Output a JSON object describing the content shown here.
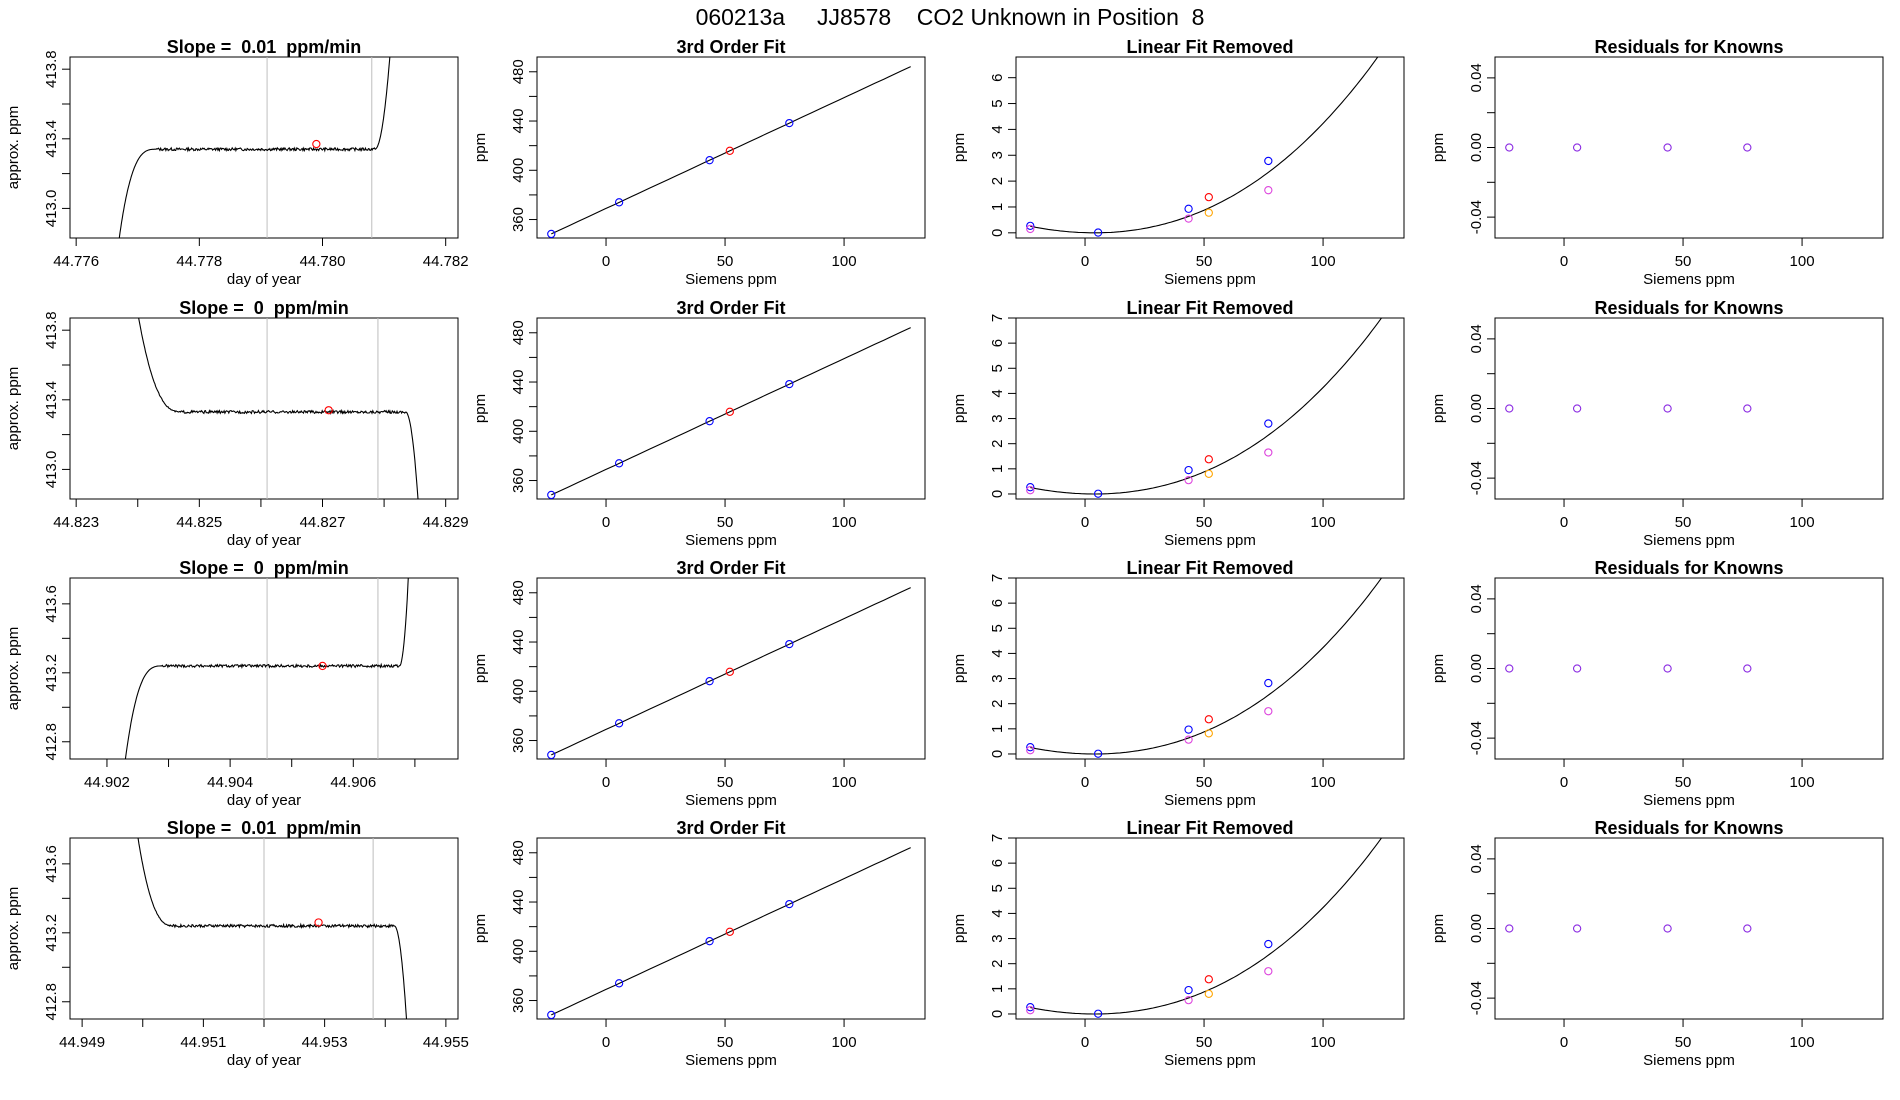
{
  "page": {
    "title": "060213a     JJ8578    CO2 Unknown in Position  8"
  },
  "colors": {
    "line": "#000000",
    "grid": "#bebebe",
    "known": "#0000ff",
    "unknown": "#ff0000",
    "magenta": "#dd44dd",
    "orange": "#ffa500",
    "residual": "#8b2be2"
  },
  "chart_data": [
    {
      "row": 1,
      "type": "line",
      "title": "Slope =  0.01  ppm/min",
      "xlabel": "day of year",
      "ylabel": "approx. ppm",
      "xlim": [
        44.7759,
        44.7822
      ],
      "ylim": [
        412.83,
        413.87
      ],
      "x_ticks": [
        44.776,
        44.778,
        44.78,
        44.782
      ],
      "x_tick_labels": [
        "44.776",
        "44.778",
        "44.780",
        "44.782"
      ],
      "y_ticks": [
        413.0,
        413.4,
        413.8
      ],
      "y_tick_labels": [
        "413.0",
        "413.4",
        "413.8"
      ],
      "y_minor_ticks": [
        413.2,
        413.6
      ],
      "vlines": [
        44.7791,
        44.7808
      ],
      "trace": {
        "x_start": 44.7767,
        "rise_end": 44.7773,
        "plateau_start": 44.77725,
        "plateau_end": 44.78085,
        "x_end": 44.7811,
        "low": 412.83,
        "level": 413.34,
        "end_value": 413.9,
        "direction": "up",
        "noise": 0.008
      },
      "marker": {
        "x": 44.7799,
        "y": 413.37
      }
    },
    {
      "row": 1,
      "type": "scatter",
      "title": "3rd Order Fit",
      "xlabel": "Siemens ppm",
      "ylabel": "ppm",
      "xlim": [
        -29,
        134
      ],
      "ylim": [
        345,
        492
      ],
      "x_ticks": [
        0,
        50,
        100
      ],
      "x_tick_labels": [
        "0",
        "50",
        "100"
      ],
      "y_ticks": [
        360,
        400,
        440,
        480
      ],
      "y_tick_labels": [
        "360",
        "400",
        "440",
        "480"
      ],
      "y_minor_ticks": [
        380,
        420,
        460
      ],
      "curve": {
        "a": 369.0,
        "b": 0.9
      },
      "points": [
        {
          "x": -23,
          "y": 348.3,
          "color": "known"
        },
        {
          "x": 5.5,
          "y": 374.0,
          "color": "known"
        },
        {
          "x": 43.5,
          "y": 408.2,
          "color": "known"
        },
        {
          "x": 52,
          "y": 415.8,
          "color": "unknown"
        },
        {
          "x": 77,
          "y": 438.3,
          "color": "known"
        }
      ]
    },
    {
      "row": 1,
      "type": "scatter",
      "title": "Linear Fit Removed",
      "xlabel": "Siemens ppm",
      "ylabel": "ppm",
      "xlim": [
        -29,
        134
      ],
      "ylim": [
        -0.2,
        6.8
      ],
      "x_ticks": [
        0,
        50,
        100
      ],
      "x_tick_labels": [
        "0",
        "50",
        "100"
      ],
      "y_ticks": [
        0,
        1,
        2,
        3,
        4,
        5,
        6
      ],
      "y_tick_labels": [
        "0",
        "1",
        "2",
        "3",
        "4",
        "5",
        "6"
      ],
      "curve": {
        "b": 0.000373,
        "c": 9e-07,
        "x_from": -23,
        "x_to": 128
      },
      "points": [
        {
          "x": -23,
          "y": 0.27,
          "color": "known"
        },
        {
          "x": 5.5,
          "y": 0.01,
          "color": "known"
        },
        {
          "x": 43.5,
          "y": 0.93,
          "color": "known"
        },
        {
          "x": 52,
          "y": 1.38,
          "color": "unknown"
        },
        {
          "x": 77,
          "y": 2.78,
          "color": "known"
        },
        {
          "x": -23,
          "y": 0.15,
          "color": "magenta"
        },
        {
          "x": 43.5,
          "y": 0.55,
          "color": "magenta"
        },
        {
          "x": 77,
          "y": 1.65,
          "color": "magenta"
        },
        {
          "x": 52,
          "y": 0.78,
          "color": "orange"
        }
      ]
    },
    {
      "row": 1,
      "type": "scatter",
      "title": "Residuals for Knowns",
      "xlabel": "Siemens ppm",
      "ylabel": "ppm",
      "xlim": [
        -29,
        134
      ],
      "ylim": [
        -0.052,
        0.052
      ],
      "x_ticks": [
        0,
        50,
        100
      ],
      "x_tick_labels": [
        "0",
        "50",
        "100"
      ],
      "y_ticks": [
        -0.04,
        0.0,
        0.04
      ],
      "y_tick_labels": [
        "-0.04",
        "0.00",
        "0.04"
      ],
      "y_minor_ticks": [
        -0.02,
        0.02
      ],
      "points": [
        {
          "x": -23,
          "y": 0,
          "color": "residual"
        },
        {
          "x": 5.5,
          "y": 0,
          "color": "residual"
        },
        {
          "x": 43.5,
          "y": 0,
          "color": "residual"
        },
        {
          "x": 77,
          "y": 0,
          "color": "residual"
        }
      ]
    },
    {
      "row": 2,
      "type": "line",
      "title": "Slope =  0  ppm/min",
      "xlabel": "day of year",
      "ylabel": "approx. ppm",
      "xlim": [
        44.8229,
        44.8292
      ],
      "ylim": [
        412.83,
        413.87
      ],
      "x_ticks": [
        44.823,
        44.825,
        44.827,
        44.829
      ],
      "x_tick_labels": [
        "44.823",
        "44.825",
        "44.827",
        "44.829"
      ],
      "x_minor_ticks": [
        44.824,
        44.826,
        44.828
      ],
      "y_ticks": [
        413.0,
        413.4,
        413.8
      ],
      "y_tick_labels": [
        "413.0",
        "413.4",
        "413.8"
      ],
      "y_minor_ticks": [
        413.2,
        413.6
      ],
      "vlines": [
        44.8261,
        44.8279
      ],
      "trace": {
        "x_start": 44.824,
        "rise_end": 44.8247,
        "plateau_start": 44.82465,
        "plateau_end": 44.82835,
        "x_end": 44.82855,
        "low": 412.83,
        "level": 413.33,
        "start_value": 413.9,
        "direction": "down",
        "noise": 0.008
      },
      "marker": {
        "x": 44.8271,
        "y": 413.34
      }
    },
    {
      "row": 2,
      "type": "scatter",
      "title": "3rd Order Fit",
      "xlabel": "Siemens ppm",
      "ylabel": "ppm",
      "xlim": [
        -29,
        134
      ],
      "ylim": [
        345,
        492
      ],
      "x_ticks": [
        0,
        50,
        100
      ],
      "x_tick_labels": [
        "0",
        "50",
        "100"
      ],
      "y_ticks": [
        360,
        400,
        440,
        480
      ],
      "y_tick_labels": [
        "360",
        "400",
        "440",
        "480"
      ],
      "y_minor_ticks": [
        380,
        420,
        460
      ],
      "curve": {
        "a": 369.0,
        "b": 0.9
      },
      "points": [
        {
          "x": -23,
          "y": 348.3,
          "color": "known"
        },
        {
          "x": 5.5,
          "y": 374.0,
          "color": "known"
        },
        {
          "x": 43.5,
          "y": 408.2,
          "color": "known"
        },
        {
          "x": 52,
          "y": 415.8,
          "color": "unknown"
        },
        {
          "x": 77,
          "y": 438.3,
          "color": "known"
        }
      ]
    },
    {
      "row": 2,
      "type": "scatter",
      "title": "Linear Fit Removed",
      "xlabel": "Siemens ppm",
      "ylabel": "ppm",
      "xlim": [
        -29,
        134
      ],
      "ylim": [
        -0.2,
        7.0
      ],
      "x_ticks": [
        0,
        50,
        100
      ],
      "x_tick_labels": [
        "0",
        "50",
        "100"
      ],
      "y_ticks": [
        0,
        1,
        2,
        3,
        4,
        5,
        6,
        7
      ],
      "y_tick_labels": [
        "0",
        "1",
        "2",
        "3",
        "4",
        "5",
        "6",
        "7"
      ],
      "curve": {
        "b": 0.000373,
        "c": 9e-07,
        "x_from": -23,
        "x_to": 128
      },
      "points": [
        {
          "x": -23,
          "y": 0.27,
          "color": "known"
        },
        {
          "x": 5.5,
          "y": 0.01,
          "color": "known"
        },
        {
          "x": 43.5,
          "y": 0.95,
          "color": "known"
        },
        {
          "x": 52,
          "y": 1.38,
          "color": "unknown"
        },
        {
          "x": 77,
          "y": 2.8,
          "color": "known"
        },
        {
          "x": -23,
          "y": 0.15,
          "color": "magenta"
        },
        {
          "x": 43.5,
          "y": 0.55,
          "color": "magenta"
        },
        {
          "x": 77,
          "y": 1.65,
          "color": "magenta"
        },
        {
          "x": 52,
          "y": 0.8,
          "color": "orange"
        }
      ]
    },
    {
      "row": 2,
      "type": "scatter",
      "title": "Residuals for Knowns",
      "xlabel": "Siemens ppm",
      "ylabel": "ppm",
      "xlim": [
        -29,
        134
      ],
      "ylim": [
        -0.052,
        0.052
      ],
      "x_ticks": [
        0,
        50,
        100
      ],
      "x_tick_labels": [
        "0",
        "50",
        "100"
      ],
      "y_ticks": [
        -0.04,
        0.0,
        0.04
      ],
      "y_tick_labels": [
        "-0.04",
        "0.00",
        "0.04"
      ],
      "y_minor_ticks": [
        -0.02,
        0.02
      ],
      "points": [
        {
          "x": -23,
          "y": 0,
          "color": "residual"
        },
        {
          "x": 5.5,
          "y": 0,
          "color": "residual"
        },
        {
          "x": 43.5,
          "y": 0,
          "color": "residual"
        },
        {
          "x": 77,
          "y": 0,
          "color": "residual"
        }
      ]
    },
    {
      "row": 3,
      "type": "line",
      "title": "Slope =  0  ppm/min",
      "xlabel": "day of year",
      "ylabel": "approx. ppm",
      "xlim": [
        44.9016,
        44.9079
      ],
      "ylim": [
        412.7,
        413.75
      ],
      "x_ticks": [
        44.9022,
        44.9042,
        44.9062
      ],
      "x_tick_labels": [
        "44.902",
        "44.904",
        "44.906"
      ],
      "x_minor_ticks": [
        44.9032,
        44.9052,
        44.9072
      ],
      "y_ticks": [
        412.8,
        413.2,
        413.6
      ],
      "y_tick_labels": [
        "412.8",
        "413.2",
        "413.6"
      ],
      "y_minor_ticks": [
        413.0,
        413.4
      ],
      "vlines": [
        44.9048,
        44.9066
      ],
      "trace": {
        "x_start": 44.9025,
        "rise_end": 44.9031,
        "plateau_start": 44.90305,
        "plateau_end": 44.90695,
        "x_end": 44.9071,
        "low": 412.7,
        "level": 413.24,
        "end_value": 413.8,
        "direction": "up",
        "noise": 0.008
      },
      "marker": {
        "x": 44.9057,
        "y": 413.24
      }
    },
    {
      "row": 3,
      "type": "scatter",
      "title": "3rd Order Fit",
      "xlabel": "Siemens ppm",
      "ylabel": "ppm",
      "xlim": [
        -29,
        134
      ],
      "ylim": [
        345,
        492
      ],
      "x_ticks": [
        0,
        50,
        100
      ],
      "x_tick_labels": [
        "0",
        "50",
        "100"
      ],
      "y_ticks": [
        360,
        400,
        440,
        480
      ],
      "y_tick_labels": [
        "360",
        "400",
        "440",
        "480"
      ],
      "y_minor_ticks": [
        380,
        420,
        460
      ],
      "curve": {
        "a": 369.0,
        "b": 0.9
      },
      "points": [
        {
          "x": -23,
          "y": 348.3,
          "color": "known"
        },
        {
          "x": 5.5,
          "y": 374.0,
          "color": "known"
        },
        {
          "x": 43.5,
          "y": 408.2,
          "color": "known"
        },
        {
          "x": 52,
          "y": 415.8,
          "color": "unknown"
        },
        {
          "x": 77,
          "y": 438.3,
          "color": "known"
        }
      ]
    },
    {
      "row": 3,
      "type": "scatter",
      "title": "Linear Fit Removed",
      "xlabel": "Siemens ppm",
      "ylabel": "ppm",
      "xlim": [
        -29,
        134
      ],
      "ylim": [
        -0.2,
        7.0
      ],
      "x_ticks": [
        0,
        50,
        100
      ],
      "x_tick_labels": [
        "0",
        "50",
        "100"
      ],
      "y_ticks": [
        0,
        1,
        2,
        3,
        4,
        5,
        6,
        7
      ],
      "y_tick_labels": [
        "0",
        "1",
        "2",
        "3",
        "4",
        "5",
        "6",
        "7"
      ],
      "curve": {
        "b": 0.000373,
        "c": 9e-07,
        "x_from": -23,
        "x_to": 128
      },
      "points": [
        {
          "x": -23,
          "y": 0.27,
          "color": "known"
        },
        {
          "x": 5.5,
          "y": 0.01,
          "color": "known"
        },
        {
          "x": 43.5,
          "y": 0.97,
          "color": "known"
        },
        {
          "x": 52,
          "y": 1.38,
          "color": "unknown"
        },
        {
          "x": 77,
          "y": 2.82,
          "color": "known"
        },
        {
          "x": -23,
          "y": 0.15,
          "color": "magenta"
        },
        {
          "x": 43.5,
          "y": 0.57,
          "color": "magenta"
        },
        {
          "x": 77,
          "y": 1.7,
          "color": "magenta"
        },
        {
          "x": 52,
          "y": 0.82,
          "color": "orange"
        }
      ]
    },
    {
      "row": 3,
      "type": "scatter",
      "title": "Residuals for Knowns",
      "xlabel": "Siemens ppm",
      "ylabel": "ppm",
      "xlim": [
        -29,
        134
      ],
      "ylim": [
        -0.052,
        0.052
      ],
      "x_ticks": [
        0,
        50,
        100
      ],
      "x_tick_labels": [
        "0",
        "50",
        "100"
      ],
      "y_ticks": [
        -0.04,
        0.0,
        0.04
      ],
      "y_tick_labels": [
        "-0.04",
        "0.00",
        "0.04"
      ],
      "y_minor_ticks": [
        -0.02,
        0.02
      ],
      "points": [
        {
          "x": -23,
          "y": 0,
          "color": "residual"
        },
        {
          "x": 5.5,
          "y": 0,
          "color": "residual"
        },
        {
          "x": 43.5,
          "y": 0,
          "color": "residual"
        },
        {
          "x": 77,
          "y": 0,
          "color": "residual"
        }
      ]
    },
    {
      "row": 4,
      "type": "line",
      "title": "Slope =  0.01  ppm/min",
      "xlabel": "day of year",
      "ylabel": "approx. ppm",
      "xlim": [
        44.9488,
        44.9552
      ],
      "ylim": [
        412.7,
        413.75
      ],
      "x_ticks": [
        44.949,
        44.951,
        44.953,
        44.955
      ],
      "x_tick_labels": [
        "44.949",
        "44.951",
        "44.953",
        "44.955"
      ],
      "x_minor_ticks": [
        44.95,
        44.952,
        44.954
      ],
      "y_ticks": [
        412.8,
        413.2,
        413.6
      ],
      "y_tick_labels": [
        "412.8",
        "413.2",
        "413.6"
      ],
      "y_minor_ticks": [
        413.0,
        413.4
      ],
      "vlines": [
        44.952,
        44.9538
      ],
      "trace": {
        "x_start": 44.9499,
        "rise_end": 44.9505,
        "plateau_start": 44.95045,
        "plateau_end": 44.95415,
        "x_end": 44.95435,
        "low": 412.7,
        "level": 413.24,
        "start_value": 413.8,
        "direction": "down",
        "noise": 0.008
      },
      "marker": {
        "x": 44.9529,
        "y": 413.26
      }
    },
    {
      "row": 4,
      "type": "scatter",
      "title": "3rd Order Fit",
      "xlabel": "Siemens ppm",
      "ylabel": "ppm",
      "xlim": [
        -29,
        134
      ],
      "ylim": [
        345,
        492
      ],
      "x_ticks": [
        0,
        50,
        100
      ],
      "x_tick_labels": [
        "0",
        "50",
        "100"
      ],
      "y_ticks": [
        360,
        400,
        440,
        480
      ],
      "y_tick_labels": [
        "360",
        "400",
        "440",
        "480"
      ],
      "y_minor_ticks": [
        380,
        420,
        460
      ],
      "curve": {
        "a": 369.0,
        "b": 0.9
      },
      "points": [
        {
          "x": -23,
          "y": 348.3,
          "color": "known"
        },
        {
          "x": 5.5,
          "y": 374.0,
          "color": "known"
        },
        {
          "x": 43.5,
          "y": 408.2,
          "color": "known"
        },
        {
          "x": 52,
          "y": 415.8,
          "color": "unknown"
        },
        {
          "x": 77,
          "y": 438.3,
          "color": "known"
        }
      ]
    },
    {
      "row": 4,
      "type": "scatter",
      "title": "Linear Fit Removed",
      "xlabel": "Siemens ppm",
      "ylabel": "ppm",
      "xlim": [
        -29,
        134
      ],
      "ylim": [
        -0.2,
        7.0
      ],
      "x_ticks": [
        0,
        50,
        100
      ],
      "x_tick_labels": [
        "0",
        "50",
        "100"
      ],
      "y_ticks": [
        0,
        1,
        2,
        3,
        4,
        5,
        6,
        7
      ],
      "y_tick_labels": [
        "0",
        "1",
        "2",
        "3",
        "4",
        "5",
        "6",
        "7"
      ],
      "curve": {
        "b": 0.000373,
        "c": 9e-07,
        "x_from": -23,
        "x_to": 128
      },
      "points": [
        {
          "x": -23,
          "y": 0.27,
          "color": "known"
        },
        {
          "x": 5.5,
          "y": 0.01,
          "color": "known"
        },
        {
          "x": 43.5,
          "y": 0.95,
          "color": "known"
        },
        {
          "x": 52,
          "y": 1.38,
          "color": "unknown"
        },
        {
          "x": 77,
          "y": 2.78,
          "color": "known"
        },
        {
          "x": -23,
          "y": 0.15,
          "color": "magenta"
        },
        {
          "x": 43.5,
          "y": 0.55,
          "color": "magenta"
        },
        {
          "x": 77,
          "y": 1.7,
          "color": "magenta"
        },
        {
          "x": 52,
          "y": 0.8,
          "color": "orange"
        }
      ]
    },
    {
      "row": 4,
      "type": "scatter",
      "title": "Residuals for Knowns",
      "xlabel": "Siemens ppm",
      "ylabel": "ppm",
      "xlim": [
        -29,
        134
      ],
      "ylim": [
        -0.052,
        0.052
      ],
      "x_ticks": [
        0,
        50,
        100
      ],
      "x_tick_labels": [
        "0",
        "50",
        "100"
      ],
      "y_ticks": [
        -0.04,
        0.0,
        0.04
      ],
      "y_tick_labels": [
        "-0.04",
        "0.00",
        "0.04"
      ],
      "y_minor_ticks": [
        -0.02,
        0.02
      ],
      "points": [
        {
          "x": -23,
          "y": 0,
          "color": "residual"
        },
        {
          "x": 5.5,
          "y": 0,
          "color": "residual"
        },
        {
          "x": 43.5,
          "y": 0,
          "color": "residual"
        },
        {
          "x": 77,
          "y": 0,
          "color": "residual"
        }
      ]
    }
  ]
}
